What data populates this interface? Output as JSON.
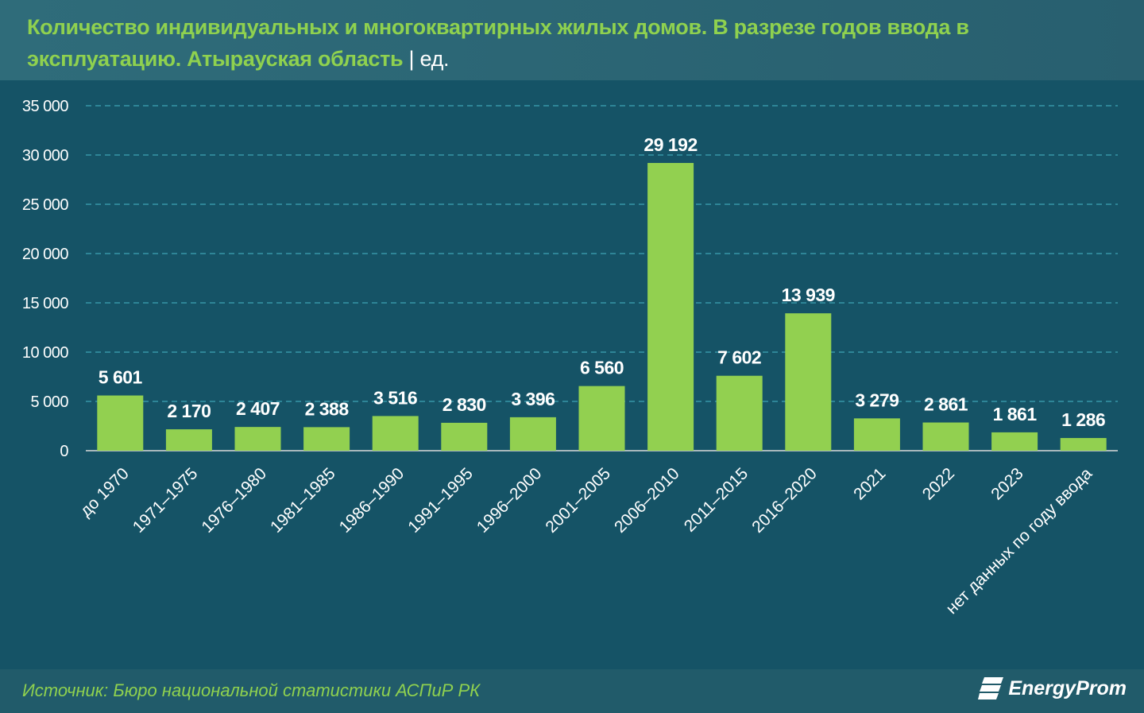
{
  "header": {
    "title": "Количество индивидуальных и многоквартирных жилых домов. В разрезе годов ввода в эксплуатацию. Атырауская область",
    "unit": "| ед."
  },
  "footer": {
    "source": "Источник: Бюро национальной статистики АСПиР РК",
    "logo": "EnergyProm"
  },
  "colors": {
    "bar": "#92d050",
    "background": "#155366",
    "grid": "#3fa3b5",
    "title": "#8fd14f"
  },
  "chart_data": {
    "type": "bar",
    "title": "Количество индивидуальных и многоквартирных жилых домов. В разрезе годов ввода в эксплуатацию. Атырауская область | ед.",
    "categories": [
      "до 1970",
      "1971–1975",
      "1976–1980",
      "1981–1985",
      "1986–1990",
      "1991–1995",
      "1996–2000",
      "2001–2005",
      "2006–2010",
      "2011–2015",
      "2016–2020",
      "2021",
      "2022",
      "2023",
      "нет данных по году ввода"
    ],
    "values": [
      5601,
      2170,
      2407,
      2388,
      3516,
      2830,
      3396,
      6560,
      29192,
      7602,
      13939,
      3279,
      2861,
      1861,
      1286
    ],
    "data_labels": [
      "5 601",
      "2 170",
      "2 407",
      "2 388",
      "3 516",
      "2 830",
      "3 396",
      "6 560",
      "29 192",
      "7 602",
      "13 939",
      "3 279",
      "2 861",
      "1 861",
      "1 286"
    ],
    "yticks": [
      0,
      5000,
      10000,
      15000,
      20000,
      25000,
      30000,
      35000
    ],
    "ytick_labels": [
      "0",
      "5 000",
      "10 000",
      "15 000",
      "20 000",
      "25 000",
      "30 000",
      "35 000"
    ],
    "ylim": [
      0,
      35000
    ],
    "xlabel": "",
    "ylabel": "",
    "grid": true,
    "legend": "none"
  }
}
